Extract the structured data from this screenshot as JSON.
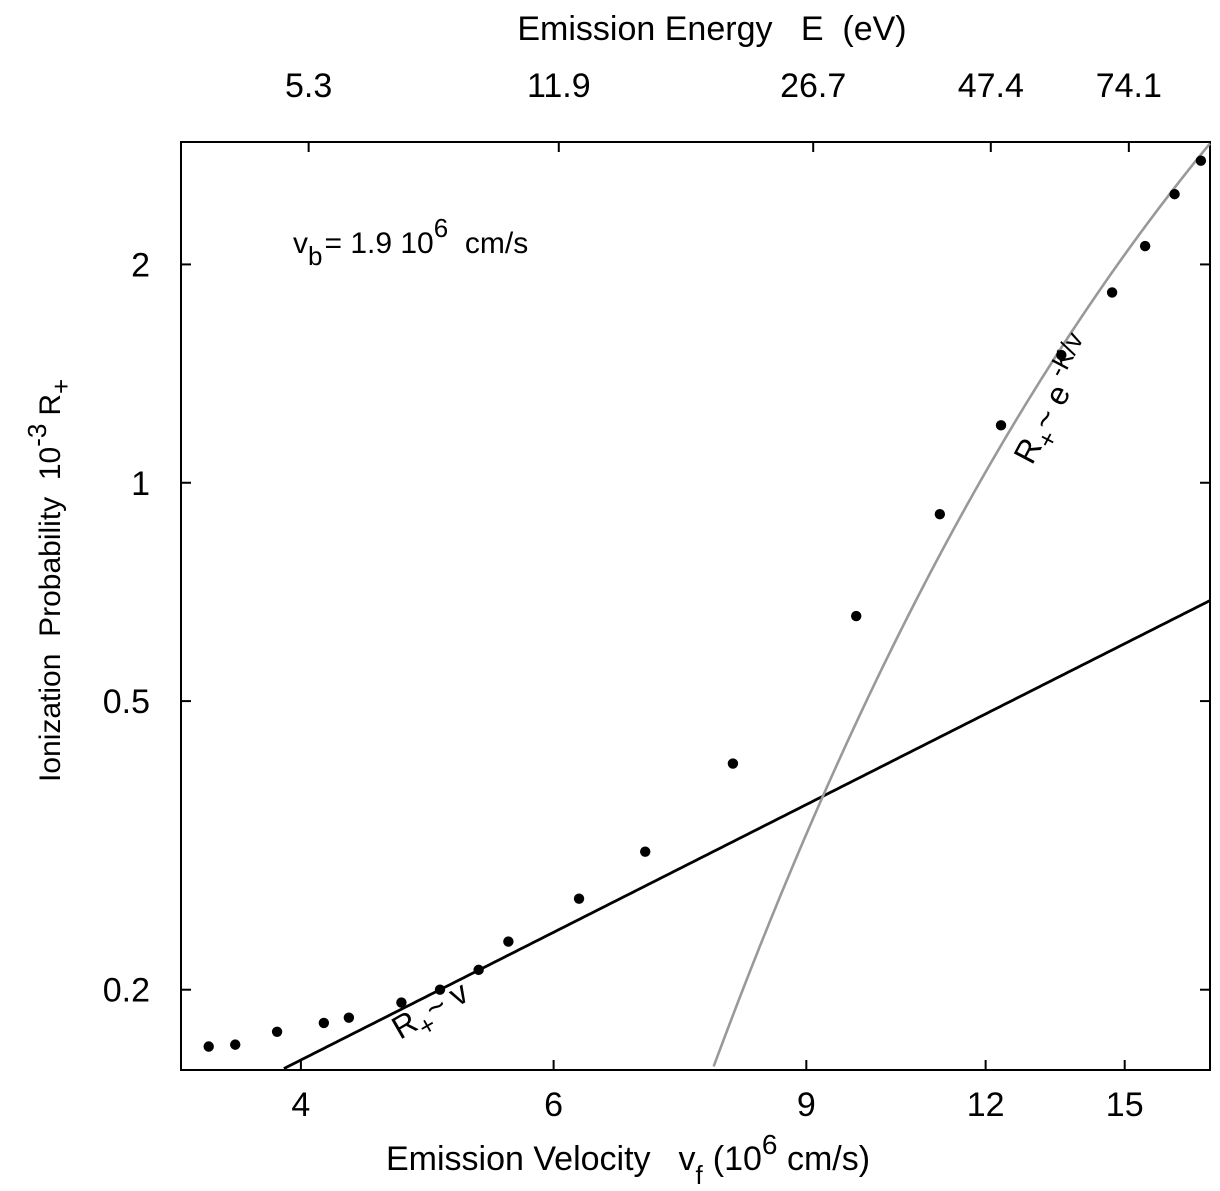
{
  "chart_data": {
    "type": "scatter",
    "x_scale": "log",
    "y_scale": "log",
    "xlim": [
      3.3,
      17.2
    ],
    "ylim": [
      0.155,
      2.95
    ],
    "grid": false,
    "xlabel": {
      "main": "Emission Velocity",
      "var": "v",
      "sub": "f",
      "unit_pre": "(10",
      "unit_exp": "6",
      "unit_post": " cm/s)"
    },
    "ylabel": {
      "main": "Ionization  Probability  10",
      "exp": "-3",
      "var": "R",
      "sub": "+"
    },
    "top_axis_label": "Emission Energy   E  (eV)",
    "top_ticks": [
      {
        "label": "5.3",
        "v": 4.05
      },
      {
        "label": "11.9",
        "v": 6.05
      },
      {
        "label": "26.7",
        "v": 9.1
      },
      {
        "label": "47.4",
        "v": 12.1
      },
      {
        "label": "74.1",
        "v": 15.1
      }
    ],
    "x_ticks": [
      {
        "label": "4",
        "v": 4
      },
      {
        "label": "6",
        "v": 6
      },
      {
        "label": "9",
        "v": 9
      },
      {
        "label": "12",
        "v": 12
      },
      {
        "label": "15",
        "v": 15
      }
    ],
    "y_ticks": [
      {
        "label": "0.2",
        "v": 0.2
      },
      {
        "label": "0.5",
        "v": 0.5
      },
      {
        "label": "1",
        "v": 1
      },
      {
        "label": "2",
        "v": 2
      }
    ],
    "annotation": {
      "var": "v",
      "sub": "b",
      "text": "= 1.9 10",
      "exp": "6",
      "unit": "  cm/s"
    },
    "points": [
      {
        "x": 3.45,
        "y": 0.167
      },
      {
        "x": 3.6,
        "y": 0.168
      },
      {
        "x": 3.85,
        "y": 0.175
      },
      {
        "x": 4.15,
        "y": 0.18
      },
      {
        "x": 4.32,
        "y": 0.183
      },
      {
        "x": 4.7,
        "y": 0.192
      },
      {
        "x": 5.0,
        "y": 0.2
      },
      {
        "x": 5.32,
        "y": 0.213
      },
      {
        "x": 5.58,
        "y": 0.233
      },
      {
        "x": 6.25,
        "y": 0.267
      },
      {
        "x": 6.95,
        "y": 0.31
      },
      {
        "x": 8.0,
        "y": 0.41
      },
      {
        "x": 9.75,
        "y": 0.655
      },
      {
        "x": 11.15,
        "y": 0.905
      },
      {
        "x": 12.3,
        "y": 1.2
      },
      {
        "x": 13.55,
        "y": 1.5
      },
      {
        "x": 14.7,
        "y": 1.83
      },
      {
        "x": 15.5,
        "y": 2.12
      },
      {
        "x": 16.25,
        "y": 2.5
      },
      {
        "x": 16.95,
        "y": 2.78
      }
    ],
    "series": [
      {
        "label_var": "R",
        "label_sub": "+",
        "label_rel": "~ v",
        "color": "#000000",
        "model": "linear",
        "x": [
          3.3,
          17.2
        ],
        "coef": 0.04
      },
      {
        "label_var": "R",
        "label_sub": "+",
        "label_rel": "~ e",
        "label_exp": " -K/v",
        "color": "#999999",
        "model": "exp_inverse",
        "x": [
          7.1,
          17.2
        ],
        "A": 32.6,
        "K": 41.4
      }
    ]
  }
}
